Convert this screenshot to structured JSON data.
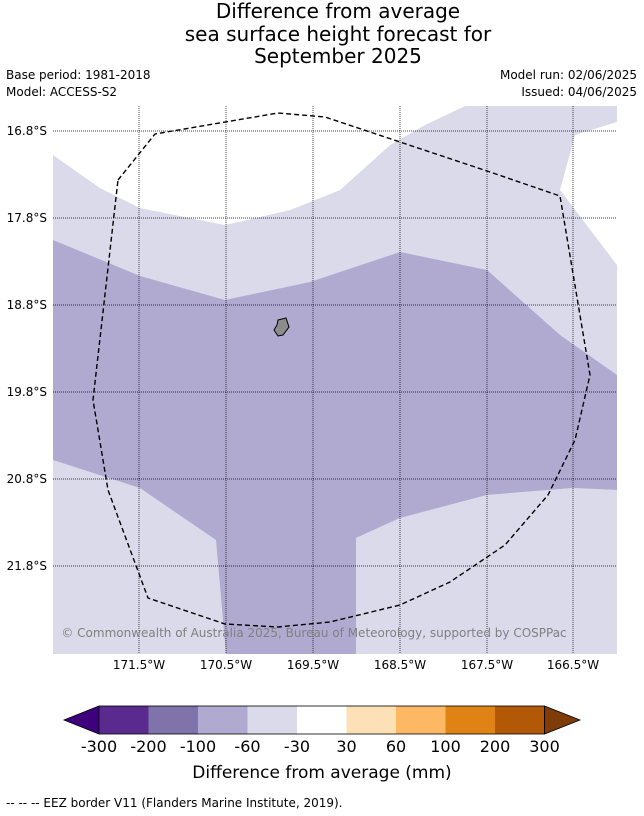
{
  "title_lines": [
    "Difference from average",
    "sea surface height forecast for",
    "September 2025"
  ],
  "meta_left": [
    "Base period: 1981-2018",
    "Model: ACCESS-S2"
  ],
  "meta_right": [
    "Model run: 02/06/2025",
    "Issued: 04/06/2025"
  ],
  "map": {
    "lat_labels": [
      "16.8°S",
      "17.8°S",
      "18.8°S",
      "19.8°S",
      "20.8°S",
      "21.8°S"
    ],
    "lon_labels": [
      "171.5°W",
      "170.5°W",
      "169.5°W",
      "168.5°W",
      "167.5°W",
      "166.5°W"
    ],
    "copyright": "© Commonwealth of Australia 2025, Bureau of Meteorology, supported by COSPPac",
    "colors": {
      "band_m30_m60": "#dadaeb",
      "band_m60_m100": "#b0aad1",
      "land": "#8c8c8c",
      "eez_border": "#000000",
      "grid": "#000000",
      "copyright_text": "#808080"
    },
    "island_icon": "island-shape"
  },
  "colorbar": {
    "tick_labels": [
      "-300",
      "-200",
      "-100",
      "-60",
      "-30",
      "30",
      "60",
      "100",
      "200",
      "300"
    ],
    "label": "Difference from average (mm)",
    "colors": [
      "#3f007d",
      "#5b2a8e",
      "#8073ac",
      "#b0aad1",
      "#dadaeb",
      "#ffffff",
      "#fee0b6",
      "#fdb863",
      "#e08214",
      "#b35806",
      "#7f3b08"
    ]
  },
  "footer": "--  --  -- EEZ border V11 (Flanders Marine Institute, 2019)."
}
